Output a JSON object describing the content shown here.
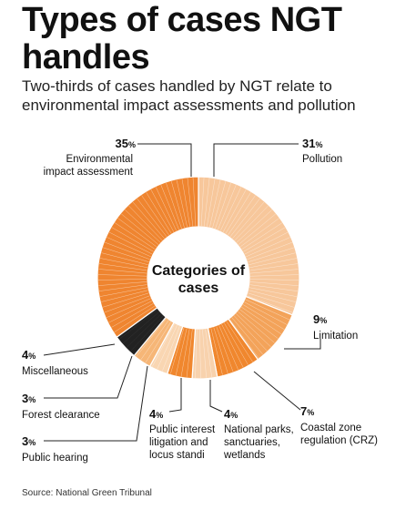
{
  "title_line1": "Types of cases NGT",
  "title_line2": "handles",
  "subtitle_line1": "Two-thirds of cases handled by NGT relate to",
  "subtitle_line2": "environmental impact assessments and pollution",
  "source": "Source: National Green Tribunal",
  "chart_data": {
    "type": "pie",
    "center_label": [
      "Categories of",
      "cases"
    ],
    "unit": "%",
    "slices": [
      {
        "label": [
          "Pollution"
        ],
        "value": 31,
        "color": "#f7c79b"
      },
      {
        "label": [
          "Limitation"
        ],
        "value": 9,
        "color": "#f3a35a"
      },
      {
        "label": [
          "Coastal zone",
          "regulation (CRZ)"
        ],
        "value": 7,
        "color": "#f0872e"
      },
      {
        "label": [
          "National parks,",
          "sanctuaries,",
          "wetlands"
        ],
        "value": 4,
        "color": "#f8d2ad"
      },
      {
        "label": [
          "Public interest",
          "litigation and",
          "locus standi"
        ],
        "value": 4,
        "color": "#f0872e"
      },
      {
        "label": [
          "Public hearing"
        ],
        "value": 3,
        "color": "#f9d6b2"
      },
      {
        "label": [
          "Forest clearance"
        ],
        "value": 3,
        "color": "#f6b677"
      },
      {
        "label": [
          "Miscellaneous"
        ],
        "value": 4,
        "color": "#222222"
      },
      {
        "label": [
          "Environmental",
          "impact assessment"
        ],
        "value": 35,
        "color": "#ef8530"
      }
    ]
  }
}
